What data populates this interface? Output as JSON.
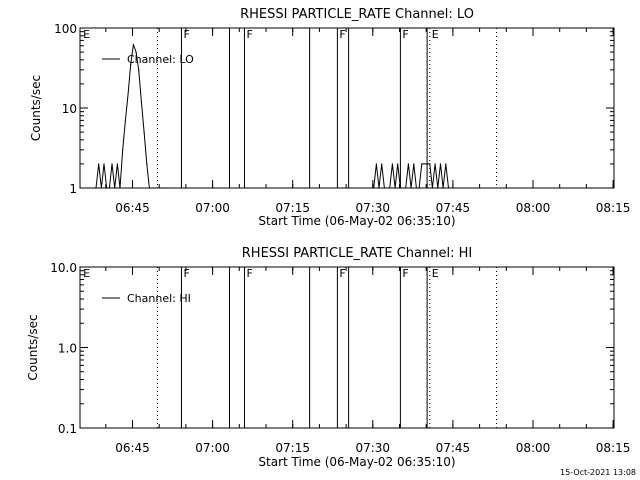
{
  "footer": {
    "timestamp": "15-Oct-2021 13:08"
  },
  "chart_data": [
    {
      "type": "line",
      "title": "RHESSI PARTICLE_RATE Channel: LO",
      "xlabel": "Start Time (06-May-02 06:35:10)",
      "ylabel": "Counts/sec",
      "x_unit": "minutes since 06:35:10",
      "xlim": [
        0,
        100
      ],
      "ylim": [
        1,
        100
      ],
      "yscale": "log",
      "x_ticks": [
        "06:45",
        "07:00",
        "07:15",
        "07:30",
        "07:45",
        "08:00",
        "08:15"
      ],
      "y_ticks": [
        "1",
        "10",
        "100"
      ],
      "legend": {
        "position": "top-left",
        "entries": [
          "Channel: LO"
        ]
      },
      "series": [
        {
          "name": "Channel: LO",
          "x": [
            3.0,
            3.5,
            4.0,
            4.5,
            5.0,
            5.5,
            6.0,
            6.5,
            7.0,
            7.5,
            8.0,
            8.5,
            9.0,
            9.5,
            10.0,
            10.5,
            11.0,
            11.5,
            12.0,
            12.5,
            13.0,
            13.5,
            14.0,
            14.5,
            15.0,
            15.5,
            16.0,
            16.5,
            55.0,
            55.5,
            56.0,
            56.5,
            57.0,
            57.5,
            58.0,
            58.5,
            59.0,
            59.5,
            60.0,
            60.5,
            61.0,
            61.5,
            62.0,
            62.5,
            63.0,
            63.5,
            64.0,
            64.5,
            65.0,
            65.5,
            66.0,
            66.5,
            67.0,
            67.5,
            68.0,
            68.5,
            69.0
          ],
          "y": [
            1,
            2,
            1,
            2,
            1,
            1,
            2,
            1,
            2,
            1,
            3,
            7,
            15,
            35,
            62,
            50,
            30,
            12,
            5,
            2,
            1,
            1,
            1,
            1,
            1,
            1,
            1,
            1,
            1,
            2,
            1,
            2,
            1,
            1,
            1,
            2,
            1,
            2,
            1,
            1,
            1,
            2,
            1,
            2,
            1,
            1,
            2,
            2,
            2,
            2,
            1,
            2,
            1,
            2,
            1,
            2,
            1
          ]
        }
      ],
      "annotations": [
        {
          "x": 0.2,
          "label": "E",
          "line": "none"
        },
        {
          "x": 14.5,
          "label": "",
          "line": "dotted"
        },
        {
          "x": 19.0,
          "label": "F",
          "line": "solid"
        },
        {
          "x": 28.0,
          "label": "",
          "line": "solid"
        },
        {
          "x": 30.8,
          "label": "F",
          "line": "solid"
        },
        {
          "x": 43.0,
          "label": "",
          "line": "solid"
        },
        {
          "x": 48.2,
          "label": "F",
          "line": "solid"
        },
        {
          "x": 50.3,
          "label": "",
          "line": "solid"
        },
        {
          "x": 60.0,
          "label": "F",
          "line": "solid"
        },
        {
          "x": 65.0,
          "label": "",
          "line": "solid"
        },
        {
          "x": 65.5,
          "label": "E",
          "line": "dotted"
        },
        {
          "x": 78.0,
          "label": "",
          "line": "dotted"
        }
      ]
    },
    {
      "type": "line",
      "title": "RHESSI PARTICLE_RATE Channel: HI",
      "xlabel": "Start Time (06-May-02 06:35:10)",
      "ylabel": "Counts/sec",
      "x_unit": "minutes since 06:35:10",
      "xlim": [
        0,
        100
      ],
      "ylim": [
        0.1,
        10
      ],
      "yscale": "log",
      "x_ticks": [
        "06:45",
        "07:00",
        "07:15",
        "07:30",
        "07:45",
        "08:00",
        "08:15"
      ],
      "y_ticks": [
        "0.1",
        "1.0",
        "10.0"
      ],
      "legend": {
        "position": "top-left",
        "entries": [
          "Channel: HI"
        ]
      },
      "series": [
        {
          "name": "Channel: HI",
          "x": [],
          "y": []
        }
      ],
      "annotations": [
        {
          "x": 0.2,
          "label": "E",
          "line": "none"
        },
        {
          "x": 14.5,
          "label": "",
          "line": "dotted"
        },
        {
          "x": 19.0,
          "label": "F",
          "line": "solid"
        },
        {
          "x": 28.0,
          "label": "",
          "line": "solid"
        },
        {
          "x": 30.8,
          "label": "F",
          "line": "solid"
        },
        {
          "x": 43.0,
          "label": "",
          "line": "solid"
        },
        {
          "x": 48.2,
          "label": "F",
          "line": "solid"
        },
        {
          "x": 50.3,
          "label": "",
          "line": "solid"
        },
        {
          "x": 60.0,
          "label": "F",
          "line": "solid"
        },
        {
          "x": 65.0,
          "label": "",
          "line": "solid"
        },
        {
          "x": 65.5,
          "label": "E",
          "line": "dotted"
        },
        {
          "x": 78.0,
          "label": "",
          "line": "dotted"
        }
      ]
    }
  ]
}
